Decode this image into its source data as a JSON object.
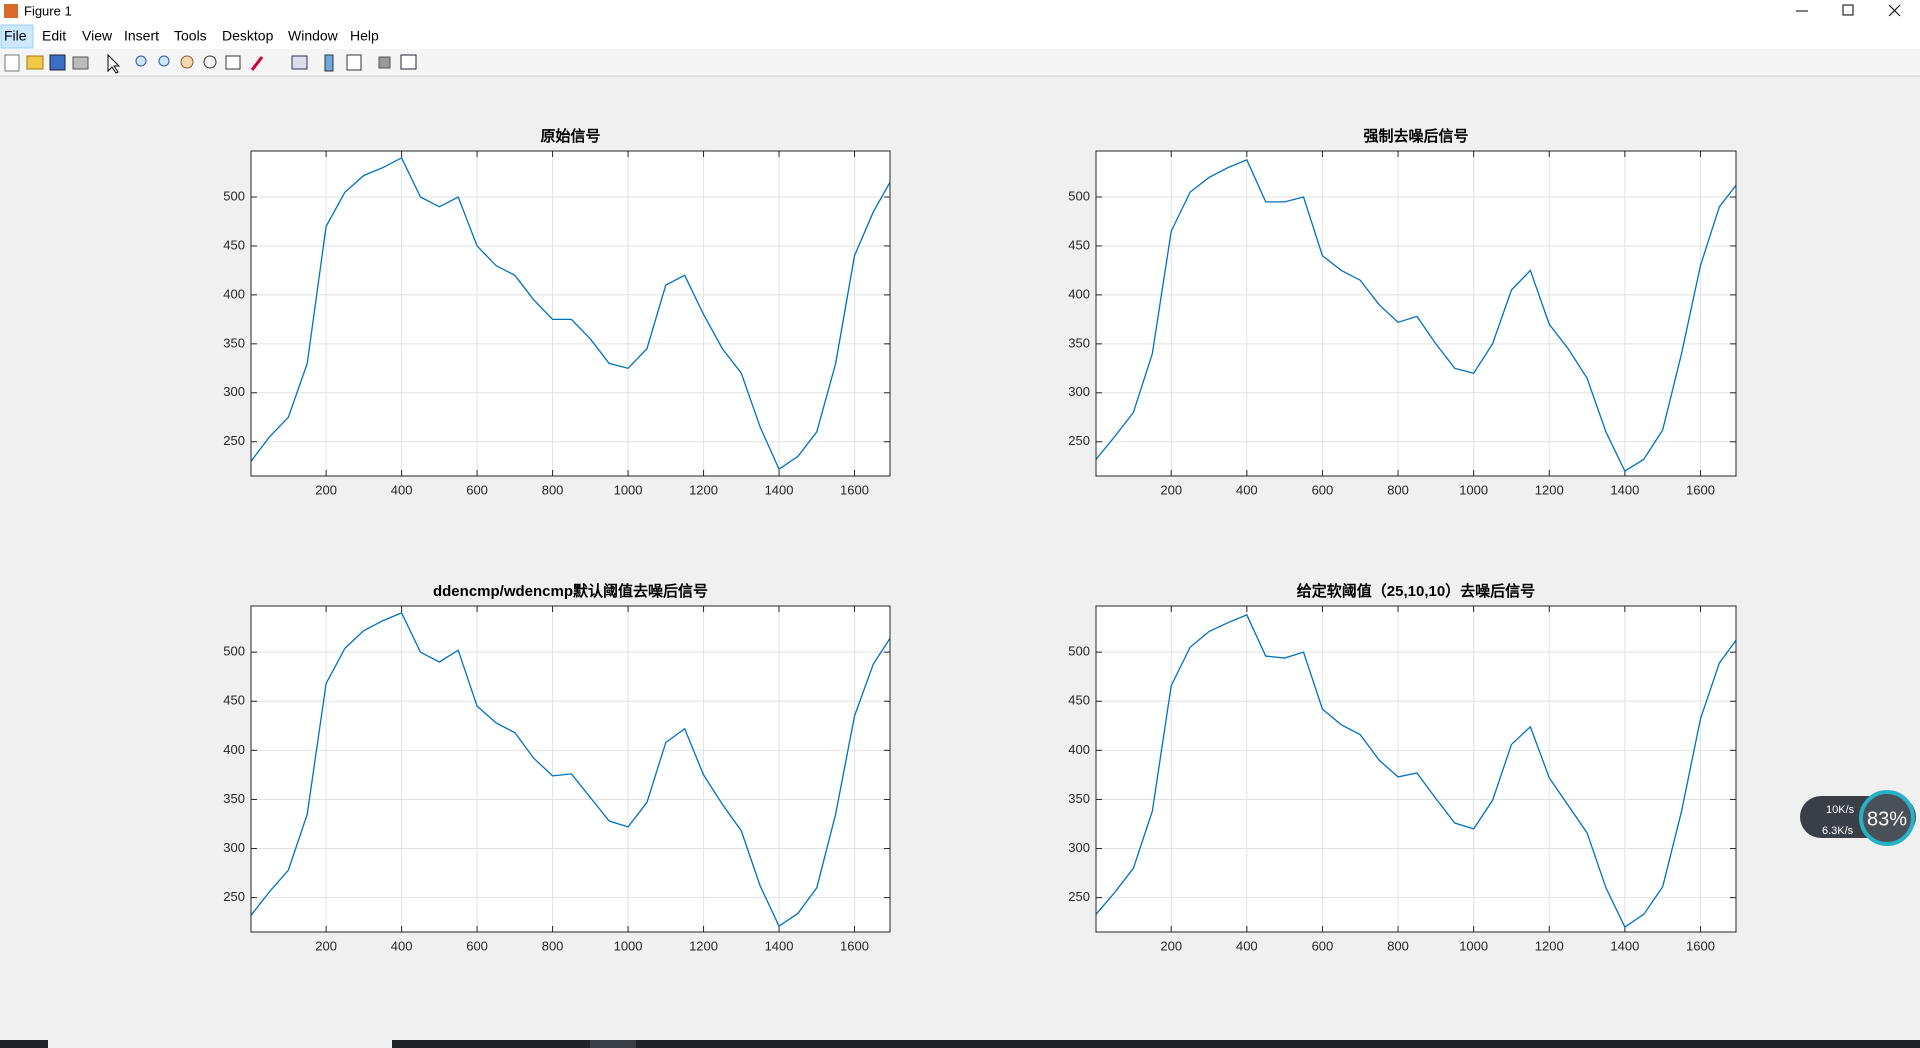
{
  "window": {
    "title": "Figure 1",
    "menu": [
      "File",
      "Edit",
      "View",
      "Insert",
      "Tools",
      "Desktop",
      "Window",
      "Help"
    ]
  },
  "overlay": {
    "upload": "10K/s",
    "download": "6.3K/s",
    "percent": "83%"
  },
  "chart_data": [
    {
      "type": "line",
      "title": "原始信号",
      "color": "#0072bd",
      "grid": true,
      "x": [
        1,
        50,
        100,
        150,
        200,
        250,
        300,
        350,
        400,
        450,
        500,
        550,
        600,
        650,
        700,
        750,
        800,
        850,
        900,
        950,
        1000,
        1050,
        1100,
        1150,
        1200,
        1250,
        1300,
        1350,
        1400,
        1450,
        1500,
        1550,
        1600,
        1650,
        1694
      ],
      "values": [
        230,
        255,
        275,
        330,
        470,
        505,
        522,
        530,
        540,
        500,
        490,
        500,
        450,
        430,
        420,
        395,
        375,
        375,
        355,
        330,
        325,
        345,
        410,
        420,
        380,
        345,
        320,
        265,
        222,
        235,
        260,
        330,
        440,
        485,
        515
      ],
      "xlim": [
        1,
        1694
      ],
      "ylim": [
        215,
        547
      ],
      "xticks": [
        200,
        400,
        600,
        800,
        1000,
        1200,
        1400,
        1600
      ],
      "yticks": [
        250,
        300,
        350,
        400,
        450,
        500
      ]
    },
    {
      "type": "line",
      "title": "强制去噪后信号",
      "color": "#0072bd",
      "grid": true,
      "x": [
        1,
        50,
        100,
        150,
        200,
        250,
        300,
        350,
        400,
        450,
        500,
        550,
        600,
        650,
        700,
        750,
        800,
        850,
        900,
        950,
        1000,
        1050,
        1100,
        1150,
        1200,
        1250,
        1300,
        1350,
        1400,
        1450,
        1500,
        1550,
        1600,
        1650,
        1694
      ],
      "values": [
        232,
        255,
        280,
        340,
        465,
        505,
        520,
        530,
        538,
        495,
        495,
        500,
        440,
        425,
        415,
        390,
        372,
        378,
        350,
        325,
        320,
        350,
        405,
        425,
        370,
        345,
        315,
        260,
        220,
        232,
        262,
        340,
        430,
        490,
        512
      ],
      "xlim": [
        1,
        1694
      ],
      "ylim": [
        215,
        547
      ],
      "xticks": [
        200,
        400,
        600,
        800,
        1000,
        1200,
        1400,
        1600
      ],
      "yticks": [
        250,
        300,
        350,
        400,
        450,
        500
      ]
    },
    {
      "type": "line",
      "title": "ddencmp/wdencmp默认阈值去噪后信号",
      "color": "#0072bd",
      "grid": true,
      "x": [
        1,
        50,
        100,
        150,
        200,
        250,
        300,
        350,
        400,
        450,
        500,
        550,
        600,
        650,
        700,
        750,
        800,
        850,
        900,
        950,
        1000,
        1050,
        1100,
        1150,
        1200,
        1250,
        1300,
        1350,
        1400,
        1450,
        1500,
        1550,
        1600,
        1650,
        1694
      ],
      "values": [
        232,
        256,
        278,
        335,
        468,
        504,
        522,
        532,
        540,
        500,
        490,
        502,
        445,
        428,
        418,
        392,
        374,
        376,
        352,
        328,
        322,
        347,
        408,
        422,
        375,
        345,
        318,
        262,
        221,
        234,
        260,
        335,
        435,
        488,
        514
      ],
      "xlim": [
        1,
        1694
      ],
      "ylim": [
        215,
        547
      ],
      "xticks": [
        200,
        400,
        600,
        800,
        1000,
        1200,
        1400,
        1600
      ],
      "yticks": [
        250,
        300,
        350,
        400,
        450,
        500
      ]
    },
    {
      "type": "line",
      "title": "给定软阈值（25,10,10）去噪后信号",
      "color": "#0072bd",
      "grid": true,
      "x": [
        1,
        50,
        100,
        150,
        200,
        250,
        300,
        350,
        400,
        450,
        500,
        550,
        600,
        650,
        700,
        750,
        800,
        850,
        900,
        950,
        1000,
        1050,
        1100,
        1150,
        1200,
        1250,
        1300,
        1350,
        1400,
        1450,
        1500,
        1550,
        1600,
        1650,
        1694
      ],
      "values": [
        233,
        255,
        280,
        338,
        466,
        505,
        521,
        530,
        538,
        496,
        494,
        500,
        442,
        426,
        416,
        390,
        373,
        377,
        351,
        326,
        320,
        349,
        406,
        424,
        372,
        344,
        316,
        260,
        220,
        233,
        261,
        338,
        432,
        489,
        512
      ],
      "xlim": [
        1,
        1694
      ],
      "ylim": [
        215,
        547
      ],
      "xticks": [
        200,
        400,
        600,
        800,
        1000,
        1200,
        1400,
        1600
      ],
      "yticks": [
        250,
        300,
        350,
        400,
        450,
        500
      ]
    }
  ]
}
